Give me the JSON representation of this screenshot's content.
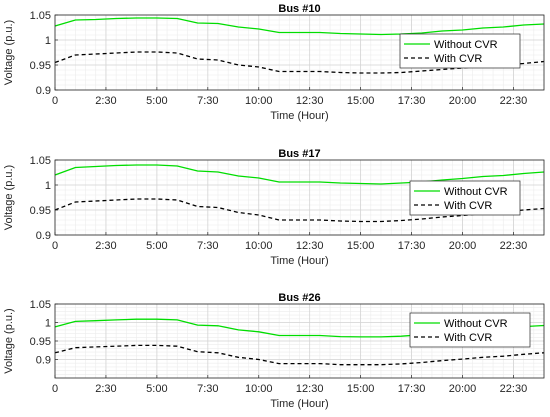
{
  "chart_data": [
    {
      "type": "line",
      "title": "Bus #10",
      "xlabel": "Time (Hour)",
      "ylabel": "Voltage (p.u.)",
      "xlim": [
        0,
        24
      ],
      "ylim": [
        0.9,
        1.05
      ],
      "xticks": [
        0,
        2.5,
        5,
        7.5,
        10,
        12.5,
        15,
        17.5,
        20,
        22.5
      ],
      "xtick_labels": [
        "0",
        "2:30",
        "5:00",
        "7:30",
        "10:00",
        "12:30",
        "15:00",
        "17:30",
        "20:00",
        "22:30"
      ],
      "yticks": [
        0.9,
        0.95,
        1,
        1.05
      ],
      "ytick_labels": [
        "0.9",
        "0.95",
        "1",
        "1.05"
      ],
      "grid": true,
      "legend_position": "right",
      "x": [
        0,
        1,
        2,
        3,
        4,
        5,
        6,
        7,
        8,
        9,
        10,
        11,
        12,
        13,
        14,
        15,
        16,
        17,
        18,
        19,
        20,
        21,
        22,
        23,
        24
      ],
      "series": [
        {
          "name": "Without CVR",
          "color": "#00dd00",
          "style": "solid",
          "values": [
            1.028,
            1.04,
            1.041,
            1.043,
            1.044,
            1.044,
            1.043,
            1.034,
            1.033,
            1.026,
            1.022,
            1.015,
            1.015,
            1.015,
            1.013,
            1.012,
            1.011,
            1.012,
            1.014,
            1.018,
            1.02,
            1.024,
            1.026,
            1.03,
            1.032
          ]
        },
        {
          "name": "With CVR",
          "color": "#000000",
          "style": "dashed",
          "values": [
            0.955,
            0.97,
            0.972,
            0.974,
            0.976,
            0.976,
            0.974,
            0.962,
            0.96,
            0.95,
            0.946,
            0.937,
            0.937,
            0.937,
            0.935,
            0.934,
            0.934,
            0.935,
            0.938,
            0.941,
            0.944,
            0.948,
            0.95,
            0.953,
            0.957
          ]
        }
      ]
    },
    {
      "type": "line",
      "title": "Bus #17",
      "xlabel": "Time (Hour)",
      "ylabel": "Voltage (p.u.)",
      "xlim": [
        0,
        24
      ],
      "ylim": [
        0.9,
        1.05
      ],
      "xticks": [
        0,
        2.5,
        5,
        7.5,
        10,
        12.5,
        15,
        17.5,
        20,
        22.5
      ],
      "xtick_labels": [
        "0",
        "2:30",
        "5:00",
        "7:30",
        "10:00",
        "12:30",
        "15:00",
        "17:30",
        "20:00",
        "22:30"
      ],
      "yticks": [
        0.9,
        0.95,
        1,
        1.05
      ],
      "ytick_labels": [
        "0.9",
        "0.95",
        "1",
        "1.05"
      ],
      "grid": true,
      "legend_position": "right",
      "x": [
        0,
        1,
        2,
        3,
        4,
        5,
        6,
        7,
        8,
        9,
        10,
        11,
        12,
        13,
        14,
        15,
        16,
        17,
        18,
        19,
        20,
        21,
        22,
        23,
        24
      ],
      "series": [
        {
          "name": "Without CVR",
          "color": "#00dd00",
          "style": "solid",
          "values": [
            1.02,
            1.035,
            1.037,
            1.039,
            1.04,
            1.04,
            1.038,
            1.028,
            1.026,
            1.018,
            1.014,
            1.006,
            1.006,
            1.006,
            1.004,
            1.003,
            1.002,
            1.004,
            1.006,
            1.01,
            1.013,
            1.017,
            1.019,
            1.023,
            1.026
          ]
        },
        {
          "name": "With CVR",
          "color": "#000000",
          "style": "dashed",
          "values": [
            0.95,
            0.966,
            0.968,
            0.97,
            0.972,
            0.972,
            0.97,
            0.957,
            0.955,
            0.945,
            0.94,
            0.93,
            0.93,
            0.93,
            0.928,
            0.927,
            0.927,
            0.929,
            0.932,
            0.936,
            0.939,
            0.943,
            0.946,
            0.95,
            0.953
          ]
        }
      ]
    },
    {
      "type": "line",
      "title": "Bus #26",
      "xlabel": "Time (Hour)",
      "ylabel": "Voltage (p.u.)",
      "xlim": [
        0,
        24
      ],
      "ylim": [
        0.85,
        1.05
      ],
      "xticks": [
        0,
        2.5,
        5,
        7.5,
        10,
        12.5,
        15,
        17.5,
        20,
        22.5
      ],
      "xtick_labels": [
        "0",
        "2:30",
        "5:00",
        "7:30",
        "10:00",
        "12:30",
        "15:00",
        "17:30",
        "20:00",
        "22:30"
      ],
      "yticks": [
        0.9,
        0.95,
        1,
        1.05
      ],
      "ytick_labels": [
        "0.9",
        "0.95",
        "1",
        "1.05"
      ],
      "grid": true,
      "legend_position": "right",
      "x": [
        0,
        1,
        2,
        3,
        4,
        5,
        6,
        7,
        8,
        9,
        10,
        11,
        12,
        13,
        14,
        15,
        16,
        17,
        18,
        19,
        20,
        21,
        22,
        23,
        24
      ],
      "series": [
        {
          "name": "Without CVR",
          "color": "#00dd00",
          "style": "solid",
          "values": [
            0.988,
            1.003,
            1.005,
            1.007,
            1.009,
            1.009,
            1.007,
            0.993,
            0.991,
            0.98,
            0.975,
            0.965,
            0.965,
            0.965,
            0.962,
            0.961,
            0.961,
            0.963,
            0.967,
            0.972,
            0.976,
            0.981,
            0.984,
            0.989,
            0.992
          ]
        },
        {
          "name": "With CVR",
          "color": "#000000",
          "style": "dashed",
          "values": [
            0.918,
            0.932,
            0.934,
            0.936,
            0.938,
            0.938,
            0.936,
            0.921,
            0.918,
            0.906,
            0.9,
            0.889,
            0.889,
            0.889,
            0.886,
            0.886,
            0.886,
            0.888,
            0.892,
            0.897,
            0.901,
            0.906,
            0.909,
            0.914,
            0.918
          ]
        }
      ]
    }
  ]
}
